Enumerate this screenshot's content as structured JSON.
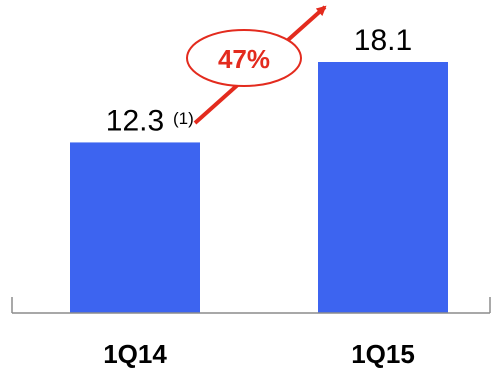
{
  "colors": {
    "bar": "#3d64f0",
    "axis": "#8c8c8c",
    "accent": "#e32b1e"
  },
  "annotations": {
    "growth": "47%",
    "footnote": "(1)"
  },
  "chart_data": {
    "type": "bar",
    "categories": [
      "1Q14",
      "1Q15"
    ],
    "values": [
      12.3,
      18.1
    ],
    "data_labels": [
      "12.3",
      "18.1"
    ],
    "title": "",
    "xlabel": "",
    "ylabel": "",
    "ylim": [
      0,
      18.1
    ],
    "grid": false,
    "legend": "none"
  }
}
